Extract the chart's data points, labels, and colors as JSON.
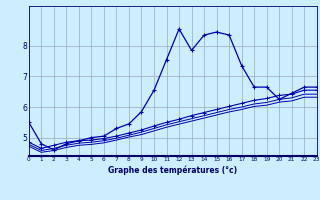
{
  "xlabel": "Graphe des températures (°c)",
  "background_color": "#cceeff",
  "grid_color": "#99aabb",
  "line_color": "#0000aa",
  "hours": [
    0,
    1,
    2,
    3,
    4,
    5,
    6,
    7,
    8,
    9,
    10,
    11,
    12,
    13,
    14,
    15,
    16,
    17,
    18,
    19,
    20,
    21,
    22,
    23
  ],
  "line1": [
    5.5,
    4.8,
    4.6,
    4.8,
    4.9,
    5.0,
    5.05,
    5.3,
    5.45,
    5.85,
    6.55,
    7.55,
    8.55,
    7.85,
    8.35,
    8.45,
    8.35,
    7.35,
    6.65,
    6.65,
    6.25,
    6.45,
    6.65,
    6.65
  ],
  "line2": [
    4.85,
    4.65,
    4.75,
    4.85,
    4.9,
    4.92,
    4.97,
    5.05,
    5.15,
    5.25,
    5.38,
    5.5,
    5.6,
    5.72,
    5.82,
    5.92,
    6.02,
    6.12,
    6.22,
    6.28,
    6.38,
    6.42,
    6.55,
    6.55
  ],
  "line3": [
    4.78,
    4.58,
    4.65,
    4.75,
    4.82,
    4.85,
    4.9,
    4.98,
    5.08,
    5.18,
    5.3,
    5.42,
    5.52,
    5.62,
    5.72,
    5.82,
    5.92,
    6.0,
    6.1,
    6.15,
    6.25,
    6.3,
    6.42,
    6.42
  ],
  "line4": [
    4.72,
    4.52,
    4.58,
    4.68,
    4.75,
    4.78,
    4.83,
    4.92,
    5.02,
    5.1,
    5.22,
    5.34,
    5.44,
    5.54,
    5.64,
    5.74,
    5.84,
    5.92,
    6.02,
    6.06,
    6.16,
    6.2,
    6.32,
    6.32
  ],
  "xlim": [
    0,
    23
  ],
  "ylim": [
    4.4,
    9.3
  ],
  "yticks": [
    5,
    6,
    7,
    8
  ],
  "xticks": [
    0,
    1,
    2,
    3,
    4,
    5,
    6,
    7,
    8,
    9,
    10,
    11,
    12,
    13,
    14,
    15,
    16,
    17,
    18,
    19,
    20,
    21,
    22,
    23
  ],
  "xlabel_fontsize": 5.5,
  "tick_fontsize_x": 4.2,
  "tick_fontsize_y": 5.5
}
